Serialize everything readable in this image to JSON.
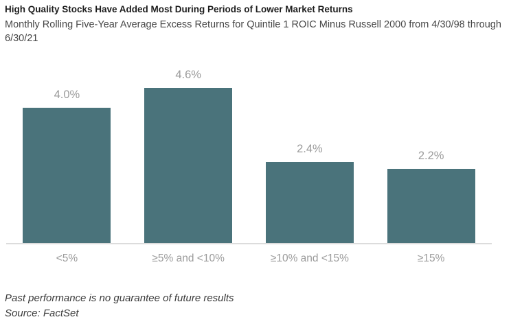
{
  "header": {
    "title": "High Quality Stocks Have Added Most During Periods of Lower Market Returns",
    "subtitle": "Monthly Rolling Five-Year Average Excess Returns for Quintile 1 ROIC Minus Russell 2000 from 4/30/98 through 6/30/21"
  },
  "chart_data": {
    "type": "bar",
    "categories": [
      "<5%",
      "≥5% and <10%",
      "≥10% and <15%",
      "≥15%"
    ],
    "values": [
      4.0,
      4.6,
      2.4,
      2.2
    ],
    "value_labels": [
      "4.0%",
      "4.6%",
      "2.4%",
      "2.2%"
    ],
    "title": "High Quality Stocks Have Added Most During Periods of Lower Market Returns",
    "xlabel": "",
    "ylabel": "",
    "ylim": [
      0,
      5.25
    ],
    "grid": false,
    "legend_position": "none",
    "bar_color": "#4a737b",
    "data_label_color": "#9b9b9b",
    "axis_label_color": "#9b9b9b",
    "baseline_color": "#dcdcdc"
  },
  "footer": {
    "disclaimer": "Past performance is no guarantee of future results",
    "source": "Source: FactSet"
  }
}
